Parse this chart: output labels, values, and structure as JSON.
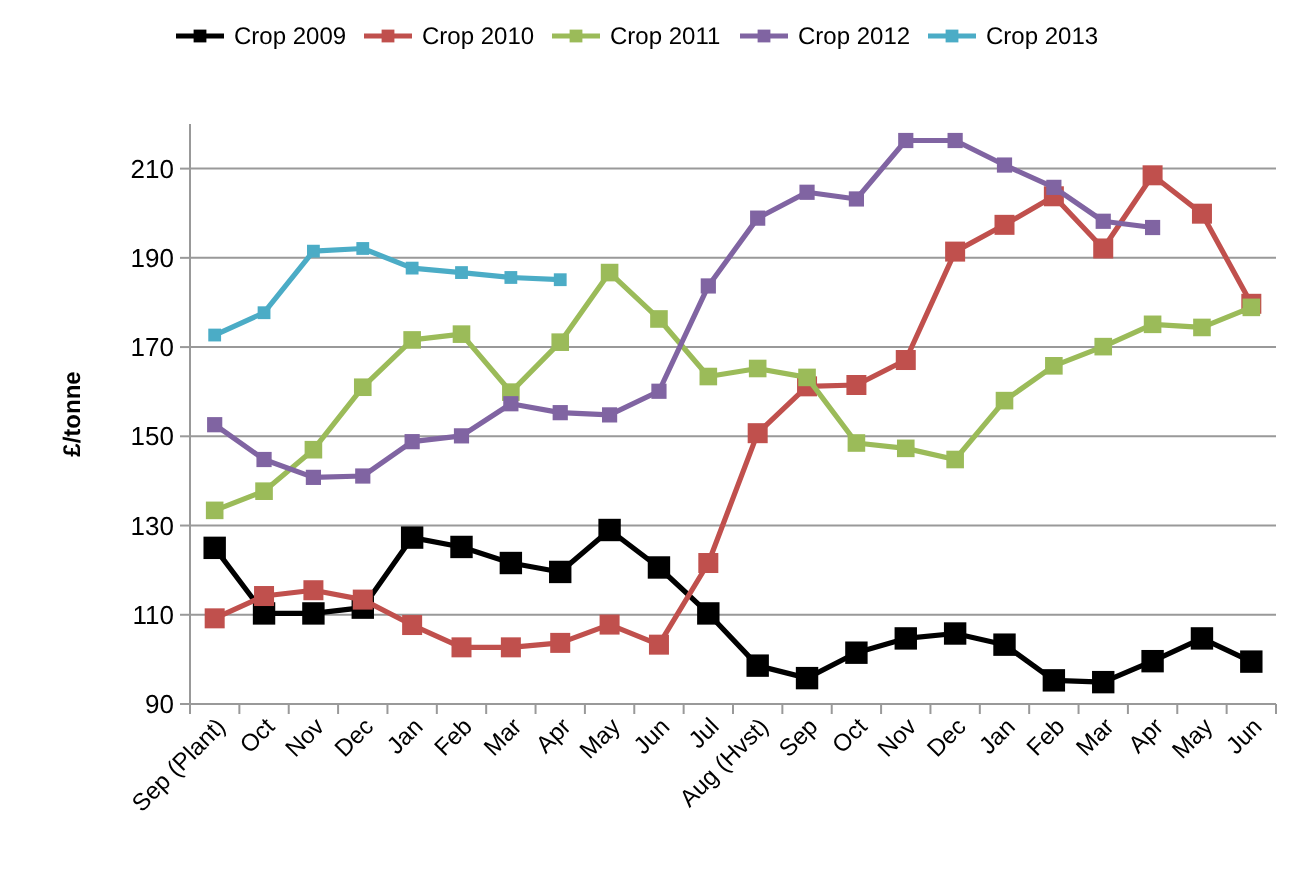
{
  "chart_data": {
    "type": "line",
    "ylabel": "£/tonne",
    "categories": [
      "Sep (Plant)",
      "Oct",
      "Nov",
      "Dec",
      "Jan",
      "Feb",
      "Mar",
      "Apr",
      "May",
      "Jun",
      "Jul",
      "Aug (Hvst)",
      "Sep",
      "Oct",
      "Nov",
      "Dec",
      "Jan",
      "Feb",
      "Mar",
      "Apr",
      "May",
      "Jun"
    ],
    "series": [
      {
        "name": "Crop 2009",
        "color": "#000000",
        "values": [
          125,
          110.3,
          110.3,
          111.6,
          127.3,
          125.2,
          121.6,
          119.6,
          129,
          120.6,
          110.3,
          98.6,
          95.8,
          101.5,
          104.7,
          105.8,
          103.3,
          95.3,
          94.9,
          99.6,
          104.7,
          99.5
        ]
      },
      {
        "name": "Crop 2010",
        "color": "#c0504d",
        "values": [
          109.2,
          114.2,
          115.5,
          113.4,
          107.7,
          102.7,
          102.7,
          103.7,
          107.8,
          103.3,
          121.6,
          150.7,
          161.2,
          161.5,
          167.1,
          191.4,
          197.4,
          203.8,
          192.1,
          208.5,
          199.9,
          179.7
        ]
      },
      {
        "name": "Crop 2011",
        "color": "#9bbb59",
        "values": [
          133.4,
          137.7,
          147,
          161,
          171.6,
          172.9,
          159.9,
          171.1,
          186.7,
          176.3,
          163.4,
          165.2,
          163.2,
          148.5,
          147.3,
          144.8,
          158,
          165.8,
          170.1,
          175.1,
          174.4,
          178.9
        ]
      },
      {
        "name": "Crop 2012",
        "color": "#8064a2",
        "values": [
          152.6,
          144.8,
          140.8,
          141.1,
          148.8,
          150.1,
          157.3,
          155.3,
          154.8,
          160.1,
          183.7,
          198.9,
          204.7,
          203.2,
          216.3,
          216.3,
          210.8,
          205.8,
          198.2,
          196.8,
          null,
          null
        ]
      },
      {
        "name": "Crop 2013",
        "color": "#4bacc6",
        "values": [
          172.7,
          177.7,
          191.5,
          192.1,
          187.7,
          186.7,
          185.6,
          185.1,
          null,
          null,
          null,
          null,
          null,
          null,
          null,
          null,
          null,
          null,
          null,
          null,
          null,
          null
        ]
      }
    ],
    "ylim": [
      90,
      220
    ],
    "yticks": [
      90,
      110,
      130,
      150,
      170,
      190,
      210
    ],
    "grid": "y",
    "legend": "top",
    "marker": "square",
    "line_style": "solid"
  }
}
